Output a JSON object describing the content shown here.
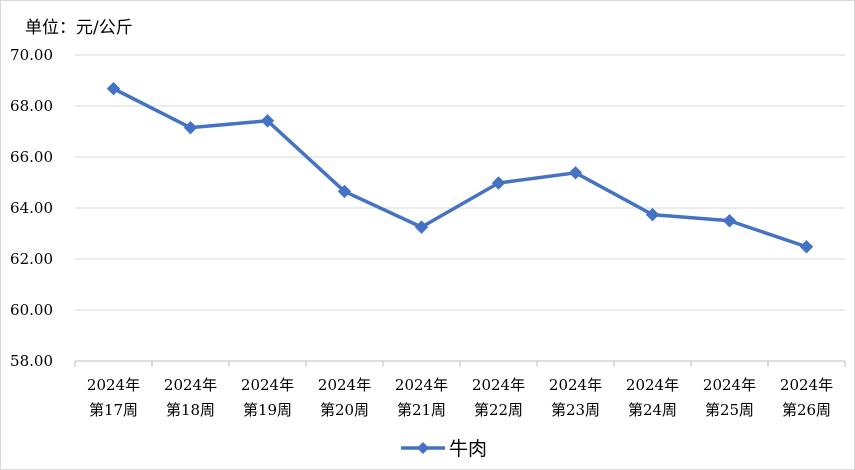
{
  "unit_label": "单位：元/公斤",
  "chart_data": {
    "type": "line",
    "categories": [
      [
        "2024年",
        "第17周"
      ],
      [
        "2024年",
        "第18周"
      ],
      [
        "2024年",
        "第19周"
      ],
      [
        "2024年",
        "第20周"
      ],
      [
        "2024年",
        "第21周"
      ],
      [
        "2024年",
        "第22周"
      ],
      [
        "2024年",
        "第23周"
      ],
      [
        "2024年",
        "第24周"
      ],
      [
        "2024年",
        "第25周"
      ],
      [
        "2024年",
        "第26周"
      ]
    ],
    "series": [
      {
        "name": "牛肉",
        "values": [
          68.68,
          67.15,
          67.42,
          64.65,
          63.25,
          64.98,
          65.38,
          63.74,
          63.5,
          62.48
        ]
      }
    ],
    "yticks": [
      "58.00",
      "60.00",
      "62.00",
      "64.00",
      "66.00",
      "68.00",
      "70.00"
    ],
    "ylim": [
      58,
      70
    ],
    "grid": true,
    "legend_position": "bottom",
    "color": "#4472C4"
  }
}
